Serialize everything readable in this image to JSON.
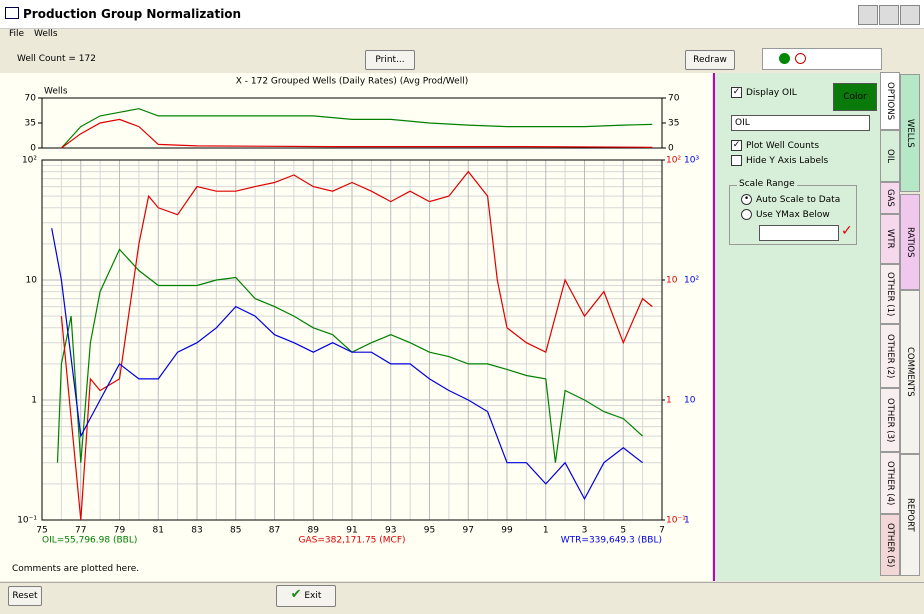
{
  "window": {
    "title": "Production Group Normalization"
  },
  "menu": [
    "File",
    "Wells"
  ],
  "toolbar": {
    "well_count": "Well Count = 172",
    "print": "Print...",
    "redraw": "Redraw"
  },
  "chart_title": "X - 172 Grouped Wells (Daily Rates) (Avg Prod/Well)",
  "chart_data": [
    {
      "type": "line",
      "y_label": "Wells",
      "xlim": [
        1975,
        2007
      ],
      "ylim": [
        0,
        70
      ],
      "yticks": [
        0,
        35,
        70
      ],
      "series": [
        {
          "color": "#008000",
          "x": [
            1976,
            1977,
            1978,
            1979,
            1980,
            1981,
            1983,
            1985,
            1987,
            1989,
            1991,
            1993,
            1995,
            1997,
            1999,
            2001,
            2003,
            2005,
            2006.5
          ],
          "values": [
            0,
            30,
            45,
            50,
            55,
            45,
            45,
            45,
            45,
            45,
            40,
            40,
            35,
            32,
            30,
            30,
            30,
            32,
            33
          ]
        },
        {
          "color": "#e00000",
          "x": [
            1976,
            1977,
            1978,
            1979,
            1980,
            1981,
            1983,
            1990,
            2000,
            2006.5
          ],
          "values": [
            0,
            20,
            35,
            40,
            30,
            5,
            3,
            2,
            2,
            1
          ]
        }
      ]
    },
    {
      "type": "line",
      "log_scale": true,
      "grid": true,
      "minor_grid": true,
      "xlim": [
        1975,
        2007
      ],
      "xticks": [
        {
          "value": 1975,
          "label": "75"
        },
        {
          "value": 1977,
          "label": "77"
        },
        {
          "value": 1979,
          "label": "79"
        },
        {
          "value": 1981,
          "label": "81"
        },
        {
          "value": 1983,
          "label": "83"
        },
        {
          "value": 1985,
          "label": "85"
        },
        {
          "value": 1987,
          "label": "87"
        },
        {
          "value": 1989,
          "label": "89"
        },
        {
          "value": 1991,
          "label": "91"
        },
        {
          "value": 1993,
          "label": "93"
        },
        {
          "value": 1995,
          "label": "95"
        },
        {
          "value": 1997,
          "label": "97"
        },
        {
          "value": 1999,
          "label": "99"
        },
        {
          "value": 2001,
          "label": "1"
        },
        {
          "value": 2003,
          "label": "3"
        },
        {
          "value": 2005,
          "label": "5"
        },
        {
          "value": 2007,
          "label": "7"
        }
      ],
      "ylim": [
        0.1,
        100
      ],
      "yticks": [
        {
          "value": 0.1,
          "label": "10⁻¹"
        },
        1,
        10,
        {
          "value": 100,
          "label": "10²"
        }
      ],
      "y2lim": [
        1,
        1000
      ],
      "y2ticks": [
        1,
        10,
        {
          "value": 100,
          "label": "10²"
        },
        {
          "value": 1000,
          "label": "10³"
        }
      ],
      "series": [
        {
          "name": "OIL=55,796.98 (BBL)",
          "color": "#008000",
          "x": [
            1975.8,
            1976,
            1976.5,
            1977,
            1977.5,
            1978,
            1979,
            1980,
            1981,
            1982,
            1983,
            1984,
            1985,
            1986,
            1987,
            1988,
            1989,
            1990,
            1991,
            1992,
            1993,
            1994,
            1995,
            1996,
            1997,
            1998,
            1999,
            2000,
            2001,
            2001.5,
            2002,
            2003,
            2004,
            2005,
            2006
          ],
          "values": [
            0.3,
            2,
            5,
            0.3,
            3,
            8,
            18,
            12,
            9,
            9,
            9,
            10,
            10.5,
            7,
            6,
            5,
            4,
            3.5,
            2.5,
            3,
            3.5,
            3,
            2.5,
            2.3,
            2,
            2,
            1.8,
            1.6,
            1.5,
            0.3,
            1.2,
            1,
            0.8,
            0.7,
            0.5
          ]
        },
        {
          "name": "GAS=382,171.75 (MCF)",
          "color": "#e00000",
          "x": [
            1976,
            1977,
            1977.5,
            1978,
            1979,
            1980,
            1980.5,
            1981,
            1982,
            1983,
            1984,
            1985,
            1986,
            1987,
            1988,
            1989,
            1990,
            1991,
            1992,
            1993,
            1994,
            1995,
            1996,
            1997,
            1998,
            1998.5,
            1999,
            2000,
            2001,
            2002,
            2003,
            2004,
            2005,
            2006,
            2006.5
          ],
          "values": [
            5,
            0.1,
            1.5,
            1.2,
            1.5,
            20,
            50,
            40,
            35,
            60,
            55,
            55,
            60,
            65,
            75,
            60,
            55,
            65,
            55,
            45,
            55,
            45,
            50,
            80,
            50,
            10,
            4,
            3,
            2.5,
            10,
            5,
            8,
            3,
            7,
            6
          ]
        },
        {
          "name": "WTR=339,649.3 (BBL)",
          "color": "#0000e0",
          "axis": "y2",
          "x": [
            1975.5,
            1976,
            1977,
            1978,
            1979,
            1980,
            1981,
            1982,
            1983,
            1984,
            1985,
            1986,
            1987,
            1988,
            1989,
            1990,
            1991,
            1992,
            1993,
            1994,
            1995,
            1996,
            1997,
            1998,
            1999,
            2000,
            2001,
            2002,
            2003,
            2004,
            2005,
            2006
          ],
          "values": [
            270,
            100,
            5,
            10,
            20,
            15,
            15,
            25,
            30,
            40,
            60,
            50,
            35,
            30,
            25,
            30,
            25,
            25,
            20,
            20,
            15,
            12,
            10,
            8,
            3,
            3,
            2,
            3,
            1.5,
            3,
            4,
            3
          ]
        }
      ]
    }
  ],
  "comments": "Comments are plotted here.",
  "buttons": {
    "reset": "Reset",
    "exit": "Exit"
  },
  "options": {
    "display": "Display OIL",
    "color": "Color",
    "select": "OIL",
    "plot_well_counts": "Plot Well Counts",
    "hide_y": "Hide Y Axis Labels",
    "scale_range": "Scale Range",
    "auto": "Auto Scale to Data",
    "ymax": "Use YMax Below"
  },
  "tabs": [
    "OPTIONS",
    "OIL",
    "GAS",
    "WTR",
    "OTHER (1)",
    "OTHER (2)",
    "OTHER (3)",
    "OTHER (4)",
    "OTHER (5)"
  ],
  "side_tabs": [
    "WELLS",
    "RATIOS",
    "COMMENTS",
    "REPORT"
  ]
}
